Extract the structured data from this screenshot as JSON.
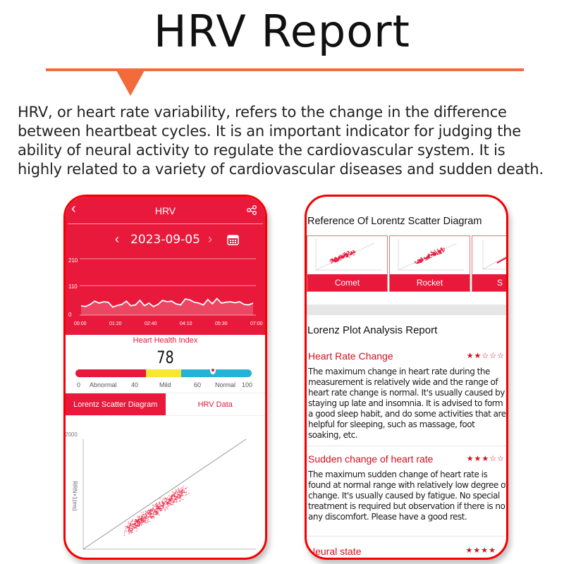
{
  "heading": "HRV Report",
  "intro": "HRV, or heart rate variability, refers to the change in the difference between heartbeat cycles. It is an important indicator for judging the ability of neural activity to regulate the cardiovascular system. It is highly related to a variety of cardiovascular diseases and sudden death.",
  "colors": {
    "accent": "#e8193b",
    "rule": "#f26b3a",
    "abnormal": "#e8193b",
    "mild": "#f7e731",
    "normal": "#22b3d6"
  },
  "phone1": {
    "title": "HRV",
    "back_icon": "chevron-left-icon",
    "share_icon": "share-icon",
    "date": "2023-09-05",
    "calendar_icon": "calendar-icon",
    "chart": {
      "type": "line",
      "y_ticks": [
        "210",
        "110",
        "0"
      ],
      "x_ticks": [
        "00:00",
        "01:20",
        "02:40",
        "04:10",
        "05:30",
        "07:00"
      ],
      "ylim": [
        0,
        210
      ],
      "values": [
        35,
        32,
        40,
        52,
        45,
        50,
        48,
        30,
        36,
        40,
        52,
        35,
        38,
        55,
        35,
        45,
        32,
        40,
        55,
        50,
        52,
        42,
        38,
        60,
        57,
        48,
        45,
        38,
        58,
        42,
        62,
        45,
        48,
        50,
        46,
        50,
        40,
        38,
        45
      ]
    },
    "health_index": {
      "label": "Heart Health Index",
      "value": "78",
      "score": 78,
      "scale": [
        {
          "v": "0",
          "l": "Abnormal"
        },
        {
          "v": "40",
          "l": "Mild"
        },
        {
          "v": "60",
          "l": "Normal"
        },
        {
          "v": "100",
          "l": ""
        }
      ]
    },
    "tabs": [
      "Lorentz Scatter Diagram",
      "HRV Data"
    ],
    "scatter": {
      "y_max": "2000",
      "y_label": "RRN+1(ms)"
    }
  },
  "phone2": {
    "reference_title": "Reference Of Lorentz Scatter Diagram",
    "references": [
      "Comet",
      "Rocket",
      "S"
    ],
    "report_title": "Lorenz Plot Analysis Report",
    "items": [
      {
        "title": "Heart Rate Change",
        "stars": "★★☆☆☆",
        "rating": 2,
        "text": "The maximum change in heart rate during the measurement is relatively wide and the range of heart rate change is normal. It's usually caused by staying up late and insomnia. It is advised to form a good sleep habit, and do some activities that are helpful for sleeping, such as massage, foot soaking, etc."
      },
      {
        "title": "Sudden change of heart rate",
        "stars": "★★★☆☆",
        "rating": 3,
        "text": "The maximum sudden change of heart rate is found at normal range with relatively low degree of change. It's usually caused by fatigue. No special treatment is required but observation if there is no any discomfort. Please have a good rest."
      },
      {
        "title": "Neural state",
        "stars": "★★★★",
        "rating": 4
      }
    ]
  }
}
